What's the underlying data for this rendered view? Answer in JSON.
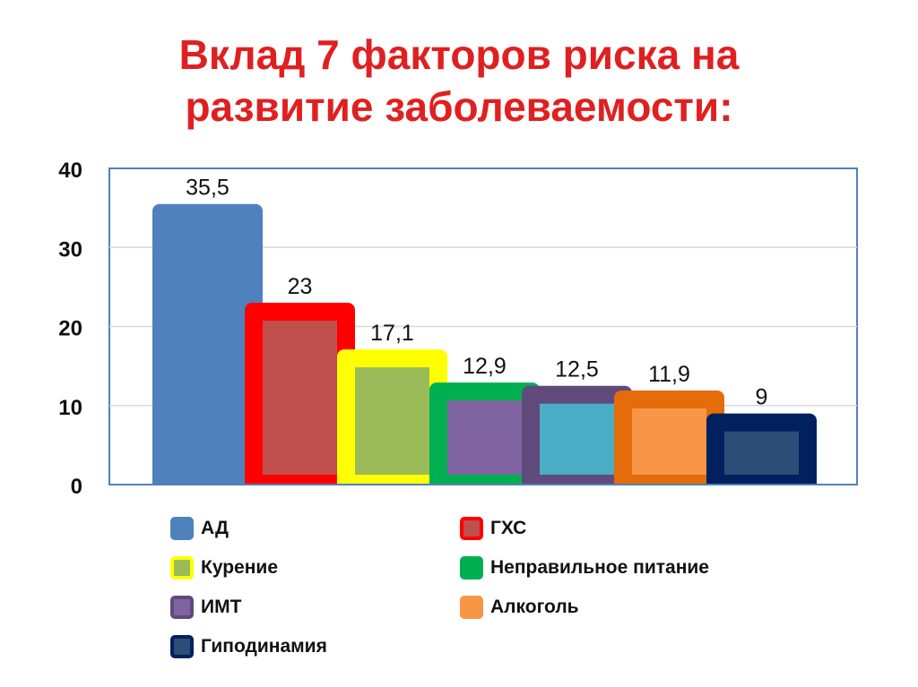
{
  "title": [
    "Вклад 7 факторов риска на",
    "развитие заболеваемости:"
  ],
  "chart_data": {
    "type": "bar",
    "categories": [
      "АД",
      "ГХС",
      "Курение",
      "Неправильное питание",
      "ИМТ",
      "Алкоголь",
      "Гиподинамия"
    ],
    "values": [
      35.5,
      23,
      17.1,
      12.9,
      12.5,
      11.9,
      9
    ],
    "data_labels": [
      "35,5",
      "23",
      "17,1",
      "12,9",
      "12,5",
      "11,9",
      "9"
    ],
    "ylim": [
      0,
      40
    ],
    "yticks": [
      "0",
      "10",
      "20",
      "30",
      "40"
    ],
    "grid": true,
    "legend_position": "bottom",
    "bar_fill_colors": [
      "#4f81bd",
      "#c0504d",
      "#9bbb59",
      "#8064a2",
      "#4bacc6",
      "#f79646",
      "#2c4d75"
    ],
    "bar_border_colors": [
      "#4f81bd",
      "#ff0000",
      "#ffff00",
      "#00b050",
      "#604a7b",
      "#e46c0a",
      "#002060"
    ]
  },
  "legend": [
    {
      "label": "АД",
      "color": "#4f81bd",
      "border": "#4f81bd"
    },
    {
      "label": "ГХС",
      "color": "#c0504d",
      "border": "#ff0000"
    },
    {
      "label": "Курение",
      "color": "#9bbb59",
      "border": "#ffff00"
    },
    {
      "label": "Неправильное питание",
      "color": "#00b050",
      "border": "#00b050"
    },
    {
      "label": "ИМТ",
      "color": "#8064a2",
      "border": "#604a7b"
    },
    {
      "label": "Алкоголь",
      "color": "#f79646",
      "border": "#f79646"
    },
    {
      "label": "Гиподинамия",
      "color": "#2c4d75",
      "border": "#002060"
    }
  ]
}
